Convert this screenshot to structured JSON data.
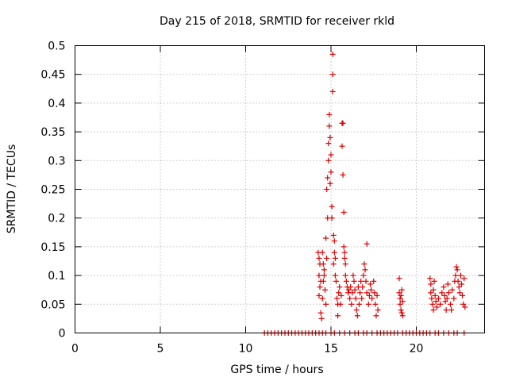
{
  "chart_data": {
    "type": "scatter",
    "title": "Day 215 of 2018, SRMTID for receiver rkld",
    "xlabel": "GPS time / hours",
    "ylabel": "SRMTID / TECUs",
    "xlim": [
      0,
      24
    ],
    "ylim": [
      0,
      0.5
    ],
    "x_ticks": [
      "0",
      "5",
      "10",
      "15",
      "20"
    ],
    "y_ticks": [
      "0",
      "0.05",
      "0.1",
      "0.15",
      "0.2",
      "0.25",
      "0.3",
      "0.35",
      "0.4",
      "0.45",
      "0.5"
    ],
    "grid": true,
    "marker": "plus",
    "color": "#dd0000",
    "series": [
      {
        "points": [
          [
            11.1,
            0
          ],
          [
            11.3,
            0
          ],
          [
            11.5,
            0
          ],
          [
            11.7,
            0
          ],
          [
            11.9,
            0
          ],
          [
            12.1,
            0
          ],
          [
            12.3,
            0
          ],
          [
            12.5,
            0
          ],
          [
            12.7,
            0
          ],
          [
            12.9,
            0
          ],
          [
            13.1,
            0
          ],
          [
            13.3,
            0
          ],
          [
            13.5,
            0
          ],
          [
            13.7,
            0
          ],
          [
            13.9,
            0
          ],
          [
            14.1,
            0
          ],
          [
            14.3,
            0
          ],
          [
            14.5,
            0
          ],
          [
            14.7,
            0
          ],
          [
            15.0,
            0
          ],
          [
            15.2,
            0
          ],
          [
            15.5,
            0
          ],
          [
            15.8,
            0
          ],
          [
            16.1,
            0
          ],
          [
            16.4,
            0
          ],
          [
            16.6,
            0
          ],
          [
            16.9,
            0
          ],
          [
            17.1,
            0
          ],
          [
            17.4,
            0
          ],
          [
            17.7,
            0
          ],
          [
            17.9,
            0
          ],
          [
            18.1,
            0
          ],
          [
            18.3,
            0
          ],
          [
            18.5,
            0
          ],
          [
            18.7,
            0
          ],
          [
            18.9,
            0
          ],
          [
            19.2,
            0
          ],
          [
            19.4,
            0
          ],
          [
            19.6,
            0
          ],
          [
            19.8,
            0
          ],
          [
            20.0,
            0
          ],
          [
            20.2,
            0
          ],
          [
            20.4,
            0
          ],
          [
            20.6,
            0
          ],
          [
            20.8,
            0
          ],
          [
            21.1,
            0
          ],
          [
            21.3,
            0
          ],
          [
            21.6,
            0
          ],
          [
            21.9,
            0
          ],
          [
            22.2,
            0
          ],
          [
            22.4,
            0
          ],
          [
            22.8,
            0
          ],
          [
            14.25,
            0.14
          ],
          [
            14.3,
            0.13
          ],
          [
            14.35,
            0.12
          ],
          [
            14.3,
            0.1
          ],
          [
            14.4,
            0.09
          ],
          [
            14.35,
            0.08
          ],
          [
            14.3,
            0.065
          ],
          [
            14.4,
            0.035
          ],
          [
            14.45,
            0.025
          ],
          [
            14.5,
            0.06
          ],
          [
            14.5,
            0.14
          ],
          [
            14.55,
            0.12
          ],
          [
            14.6,
            0.1
          ],
          [
            14.6,
            0.11
          ],
          [
            14.55,
            0.09
          ],
          [
            14.65,
            0.075
          ],
          [
            14.7,
            0.05
          ],
          [
            14.7,
            0.165
          ],
          [
            14.75,
            0.13
          ],
          [
            14.8,
            0.2
          ],
          [
            14.75,
            0.25
          ],
          [
            14.8,
            0.27
          ],
          [
            14.85,
            0.3
          ],
          [
            14.85,
            0.33
          ],
          [
            14.9,
            0.36
          ],
          [
            14.9,
            0.38
          ],
          [
            14.95,
            0.34
          ],
          [
            15.0,
            0.31
          ],
          [
            15.0,
            0.28
          ],
          [
            14.95,
            0.26
          ],
          [
            15.05,
            0.22
          ],
          [
            15.05,
            0.2
          ],
          [
            15.1,
            0.485
          ],
          [
            15.1,
            0.45
          ],
          [
            15.1,
            0.42
          ],
          [
            15.15,
            0.17
          ],
          [
            15.15,
            0.12
          ],
          [
            15.2,
            0.14
          ],
          [
            15.2,
            0.16
          ],
          [
            15.25,
            0.13
          ],
          [
            15.25,
            0.1
          ],
          [
            15.3,
            0.09
          ],
          [
            15.35,
            0.06
          ],
          [
            15.4,
            0.05
          ],
          [
            15.4,
            0.03
          ],
          [
            15.45,
            0.07
          ],
          [
            15.5,
            0.08
          ],
          [
            15.55,
            0.05
          ],
          [
            15.6,
            0.065
          ],
          [
            15.65,
            0.365
          ],
          [
            15.65,
            0.325
          ],
          [
            15.7,
            0.365
          ],
          [
            15.7,
            0.275
          ],
          [
            15.75,
            0.21
          ],
          [
            15.75,
            0.15
          ],
          [
            15.8,
            0.14
          ],
          [
            15.8,
            0.13
          ],
          [
            15.85,
            0.12
          ],
          [
            15.85,
            0.1
          ],
          [
            15.9,
            0.09
          ],
          [
            15.95,
            0.08
          ],
          [
            16.0,
            0.07
          ],
          [
            16.05,
            0.075
          ],
          [
            16.1,
            0.06
          ],
          [
            16.15,
            0.08
          ],
          [
            16.2,
            0.05
          ],
          [
            16.25,
            0.07
          ],
          [
            16.3,
            0.1
          ],
          [
            16.35,
            0.09
          ],
          [
            16.4,
            0.075
          ],
          [
            16.45,
            0.06
          ],
          [
            16.5,
            0.04
          ],
          [
            16.55,
            0.03
          ],
          [
            16.6,
            0.08
          ],
          [
            16.65,
            0.05
          ],
          [
            16.7,
            0.07
          ],
          [
            16.75,
            0.09
          ],
          [
            16.8,
            0.06
          ],
          [
            16.85,
            0.08
          ],
          [
            16.9,
            0.1
          ],
          [
            16.95,
            0.12
          ],
          [
            17.0,
            0.11
          ],
          [
            17.05,
            0.09
          ],
          [
            17.1,
            0.155
          ],
          [
            17.1,
            0.07
          ],
          [
            17.2,
            0.05
          ],
          [
            17.25,
            0.065
          ],
          [
            17.3,
            0.085
          ],
          [
            17.35,
            0.075
          ],
          [
            17.4,
            0.06
          ],
          [
            17.5,
            0.09
          ],
          [
            17.55,
            0.07
          ],
          [
            17.6,
            0.05
          ],
          [
            17.65,
            0.03
          ],
          [
            17.7,
            0.065
          ],
          [
            17.75,
            0.04
          ],
          [
            19.0,
            0.095
          ],
          [
            19.0,
            0.07
          ],
          [
            19.05,
            0.06
          ],
          [
            19.05,
            0.05
          ],
          [
            19.1,
            0.065
          ],
          [
            19.1,
            0.04
          ],
          [
            19.15,
            0.035
          ],
          [
            19.15,
            0.075
          ],
          [
            19.2,
            0.055
          ],
          [
            19.2,
            0.03
          ],
          [
            20.8,
            0.095
          ],
          [
            20.85,
            0.085
          ],
          [
            20.85,
            0.07
          ],
          [
            20.9,
            0.06
          ],
          [
            20.95,
            0.05
          ],
          [
            21.0,
            0.04
          ],
          [
            21.0,
            0.075
          ],
          [
            21.05,
            0.09
          ],
          [
            21.1,
            0.065
          ],
          [
            21.15,
            0.055
          ],
          [
            21.2,
            0.045
          ],
          [
            21.3,
            0.06
          ],
          [
            21.4,
            0.05
          ],
          [
            21.5,
            0.07
          ],
          [
            21.6,
            0.08
          ],
          [
            21.65,
            0.065
          ],
          [
            21.7,
            0.055
          ],
          [
            21.75,
            0.04
          ],
          [
            21.8,
            0.06
          ],
          [
            21.85,
            0.085
          ],
          [
            21.9,
            0.07
          ],
          [
            22.0,
            0.05
          ],
          [
            22.05,
            0.04
          ],
          [
            22.1,
            0.075
          ],
          [
            22.2,
            0.06
          ],
          [
            22.25,
            0.09
          ],
          [
            22.3,
            0.1
          ],
          [
            22.35,
            0.115
          ],
          [
            22.4,
            0.11
          ],
          [
            22.45,
            0.09
          ],
          [
            22.5,
            0.08
          ],
          [
            22.55,
            0.07
          ],
          [
            22.6,
            0.1
          ],
          [
            22.65,
            0.085
          ],
          [
            22.7,
            0.065
          ],
          [
            22.75,
            0.05
          ],
          [
            22.8,
            0.095
          ],
          [
            22.85,
            0.045
          ]
        ]
      }
    ]
  }
}
